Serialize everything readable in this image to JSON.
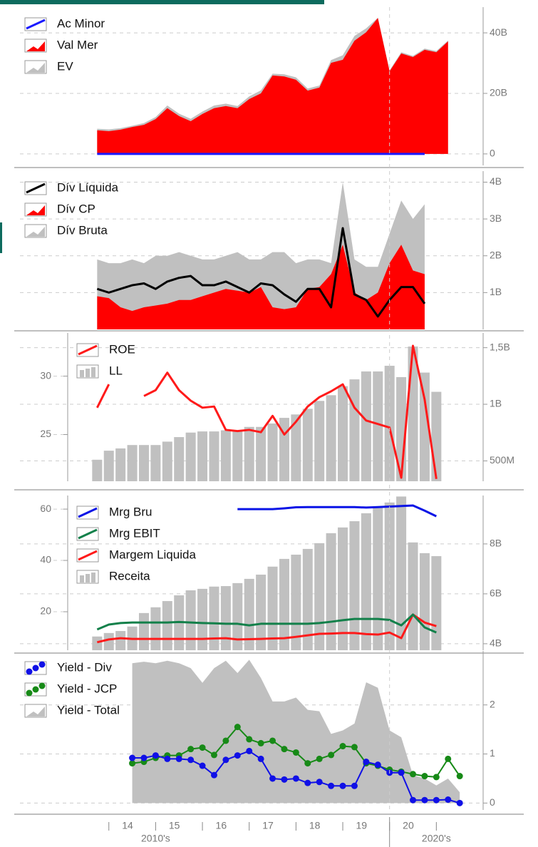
{
  "chart_data": [
    {
      "type": "combo",
      "xlim": [
        2012.1,
        2022.0
      ],
      "grid": true,
      "x": [
        2013.75,
        2014,
        2014.25,
        2014.5,
        2014.75,
        2015,
        2015.25,
        2015.5,
        2015.75,
        2016,
        2016.25,
        2016.5,
        2016.75,
        2017,
        2017.25,
        2017.5,
        2017.75,
        2018,
        2018.25,
        2018.5,
        2018.75,
        2019,
        2019.25,
        2019.5,
        2019.75,
        2020,
        2020.25,
        2020.5,
        2020.75,
        2021,
        2021.25
      ],
      "y2lim": [
        -3800000000.0,
        48500000000.0
      ],
      "y2ticks": [
        0,
        {
          "value": 20000000000.0,
          "label": "20B"
        },
        {
          "value": 40000000000.0,
          "label": "40B"
        }
      ],
      "series": [
        {
          "name": "Ac Minor",
          "color": "#1a1aff",
          "kind": "line",
          "axis": "y2",
          "values": [
            0,
            0,
            0,
            0,
            0,
            0,
            0,
            0,
            0,
            0,
            0,
            0,
            0,
            0,
            0,
            0,
            0,
            0,
            0,
            0,
            0,
            0,
            0,
            0,
            0,
            0,
            0,
            0,
            0,
            null,
            null
          ]
        },
        {
          "name": "Val Mer",
          "color": "#ff0000",
          "kind": "area",
          "axis": "y2",
          "values": [
            7800000000.0,
            7500000000.0,
            8000000000.0,
            8900000000.0,
            9600000000.0,
            11500000000.0,
            15100000000.0,
            12500000000.0,
            10800000000.0,
            13200000000.0,
            15100000000.0,
            15800000000.0,
            15100000000.0,
            18100000000.0,
            20000000000.0,
            25900000000.0,
            25600000000.0,
            24500000000.0,
            20900000000.0,
            21900000000.0,
            30100000000.0,
            31100000000.0,
            37400000000.0,
            40200000000.0,
            44900000000.0,
            27300000000.0,
            33200000000.0,
            32000000000.0,
            34400000000.0,
            33600000000.0,
            37200000000.0
          ]
        },
        {
          "name": "EV",
          "color": "#c0c0c0",
          "kind": "area",
          "axis": "y2",
          "values": [
            8300000000.0,
            8100000000.0,
            8500000000.0,
            9300000000.0,
            10200000000.0,
            12200000000.0,
            16000000000.0,
            13300000000.0,
            11600000000.0,
            14000000000.0,
            16000000000.0,
            16600000000.0,
            15800000000.0,
            19000000000.0,
            21000000000.0,
            26500000000.0,
            26300000000.0,
            25300000000.0,
            21600000000.0,
            22600000000.0,
            31000000000.0,
            32600000000.0,
            39000000000.0,
            41500000000.0,
            45000000000.0,
            27600000000.0,
            33600000000.0,
            32400000000.0,
            34800000000.0,
            34000000000.0,
            37500000000.0
          ]
        }
      ]
    },
    {
      "type": "combo",
      "xlim": [
        2012.1,
        2022.0
      ],
      "grid": true,
      "x": [
        2013.75,
        2014,
        2014.25,
        2014.5,
        2014.75,
        2015,
        2015.25,
        2015.5,
        2015.75,
        2016,
        2016.25,
        2016.5,
        2016.75,
        2017,
        2017.25,
        2017.5,
        2017.75,
        2018,
        2018.25,
        2018.5,
        2018.75,
        2019,
        2019.25,
        2019.5,
        2019.75,
        2020,
        2020.25,
        2020.5,
        2020.75
      ],
      "y2lim": [
        0,
        4300000000.0
      ],
      "y2ticks": [
        {
          "value": 1000000000.0,
          "label": "1B"
        },
        {
          "value": 2000000000.0,
          "label": "2B"
        },
        {
          "value": 3000000000.0,
          "label": "3B"
        },
        {
          "value": 4000000000.0,
          "label": "4B"
        }
      ],
      "series": [
        {
          "name": "Dív Líquida",
          "color": "#000000",
          "kind": "line",
          "axis": "y2",
          "values": [
            1100000000.0,
            1000000000.0,
            1100000000.0,
            1200000000.0,
            1250000000.0,
            1100000000.0,
            1300000000.0,
            1400000000.0,
            1450000000.0,
            1200000000.0,
            1200000000.0,
            1300000000.0,
            1150000000.0,
            1000000000.0,
            1250000000.0,
            1200000000.0,
            950000000.0,
            750000000.0,
            1100000000.0,
            1100000000.0,
            600000000.0,
            2750000000.0,
            950000000.0,
            800000000.0,
            350000000.0,
            800000000.0,
            1150000000.0,
            1150000000.0,
            700000000.0
          ]
        },
        {
          "name": "Dív CP",
          "color": "#ff0000",
          "kind": "area",
          "axis": "y2",
          "values": [
            900000000.0,
            850000000.0,
            600000000.0,
            500000000.0,
            600000000.0,
            650000000.0,
            700000000.0,
            800000000.0,
            800000000.0,
            900000000.0,
            1000000000.0,
            1100000000.0,
            1050000000.0,
            1000000000.0,
            1150000000.0,
            600000000.0,
            550000000.0,
            600000000.0,
            1100000000.0,
            1150000000.0,
            1500000000.0,
            2300000000.0,
            1000000000.0,
            800000000.0,
            1000000000.0,
            1800000000.0,
            2300000000.0,
            1600000000.0,
            1500000000.0
          ]
        },
        {
          "name": "Dív Bruta",
          "color": "#c0c0c0",
          "kind": "area",
          "axis": "y2",
          "values": [
            1900000000.0,
            1800000000.0,
            1800000000.0,
            1900000000.0,
            1800000000.0,
            2000000000.0,
            2000000000.0,
            2100000000.0,
            2000000000.0,
            1900000000.0,
            1900000000.0,
            2000000000.0,
            2100000000.0,
            1900000000.0,
            1900000000.0,
            2100000000.0,
            2100000000.0,
            1800000000.0,
            1900000000.0,
            1900000000.0,
            1800000000.0,
            4000000000.0,
            1900000000.0,
            1700000000.0,
            1700000000.0,
            2600000000.0,
            3500000000.0,
            3000000000.0,
            3400000000.0
          ]
        }
      ]
    },
    {
      "type": "combo",
      "xlim": [
        2012.1,
        2022.0
      ],
      "grid": true,
      "x": [
        2013.75,
        2014,
        2014.25,
        2014.5,
        2014.75,
        2015,
        2015.25,
        2015.5,
        2015.75,
        2016,
        2016.25,
        2016.5,
        2016.75,
        2017,
        2017.25,
        2017.5,
        2017.75,
        2018,
        2018.25,
        2018.5,
        2018.75,
        2019,
        2019.25,
        2019.5,
        2019.75,
        2020,
        2020.25,
        2020.5,
        2020.75,
        2021
      ],
      "ylim": [
        21.0,
        33.7
      ],
      "yticks": [
        25,
        30
      ],
      "y2lim": [
        320000000.0,
        1630000000.0
      ],
      "y2ticks": [
        {
          "value": 500000000.0,
          "label": "500M"
        },
        {
          "value": 1000000000.0,
          "label": "1B"
        },
        {
          "value": 1500000000.0,
          "label": "1,5B"
        }
      ],
      "series": [
        {
          "name": "ROE",
          "color": "#ff1a1a",
          "kind": "line",
          "values": [
            27.3,
            29.3,
            null,
            null,
            28.3,
            28.8,
            30.3,
            28.8,
            27.9,
            27.3,
            27.4,
            25.4,
            25.3,
            25.4,
            25.2,
            26.6,
            25.0,
            26.1,
            27.4,
            28.2,
            28.7,
            29.3,
            27.3,
            26.2,
            25.9,
            25.6,
            21.3,
            32.6,
            28.0,
            21.2
          ]
        },
        {
          "name": "LL",
          "color": "#c0c0c0",
          "kind": "bar",
          "axis": "y2",
          "values": [
            510000000.0,
            590000000.0,
            610000000.0,
            640000000.0,
            640000000.0,
            640000000.0,
            670000000.0,
            710000000.0,
            750000000.0,
            760000000.0,
            760000000.0,
            770000000.0,
            760000000.0,
            800000000.0,
            800000000.0,
            830000000.0,
            880000000.0,
            910000000.0,
            960000000.0,
            1030000000.0,
            1080000000.0,
            1160000000.0,
            1220000000.0,
            1290000000.0,
            1290000000.0,
            1340000000.0,
            1240000000.0,
            1510000000.0,
            1280000000.0,
            1110000000.0
          ]
        }
      ]
    },
    {
      "type": "combo",
      "xlim": [
        2012.1,
        2022.0
      ],
      "grid": true,
      "x": [
        2013.75,
        2014,
        2014.25,
        2014.5,
        2014.75,
        2015,
        2015.25,
        2015.5,
        2015.75,
        2016,
        2016.25,
        2016.5,
        2016.75,
        2017,
        2017.25,
        2017.5,
        2017.75,
        2018,
        2018.25,
        2018.5,
        2018.75,
        2019,
        2019.25,
        2019.5,
        2019.75,
        2020,
        2020.25,
        2020.5,
        2020.75,
        2021
      ],
      "ylim": [
        5,
        65.3
      ],
      "yticks": [
        20,
        40,
        60
      ],
      "y2lim": [
        3740000000.0,
        9940000000.0
      ],
      "y2ticks": [
        {
          "value": 4000000000.0,
          "label": "4B"
        },
        {
          "value": 6000000000.0,
          "label": "6B"
        },
        {
          "value": 8000000000.0,
          "label": "8B"
        }
      ],
      "series": [
        {
          "name": "Mrg Bru",
          "color": "#0a14e6",
          "kind": "line",
          "values": [
            null,
            null,
            null,
            null,
            null,
            null,
            null,
            null,
            null,
            null,
            null,
            null,
            60.0,
            60.0,
            60.0,
            60.0,
            60.3,
            60.7,
            60.8,
            60.8,
            60.8,
            60.8,
            60.8,
            60.6,
            60.8,
            61.0,
            61.2,
            61.4,
            59.4,
            57.2
          ]
        },
        {
          "name": "Mrg EBIT",
          "color": "#12804a",
          "kind": "line",
          "values": [
            13.1,
            15.0,
            15.6,
            15.8,
            15.8,
            15.8,
            15.8,
            16.0,
            15.8,
            15.6,
            15.5,
            15.3,
            15.3,
            14.7,
            15.3,
            15.3,
            15.3,
            15.3,
            15.3,
            15.6,
            16.1,
            16.7,
            17.2,
            17.2,
            17.2,
            16.8,
            14.7,
            18.9,
            13.9,
            11.9
          ]
        },
        {
          "name": "Margem Liquida",
          "color": "#ff1a1a",
          "kind": "line",
          "values": [
            8.1,
            9.2,
            9.7,
            9.4,
            9.4,
            9.4,
            9.4,
            9.4,
            9.4,
            9.4,
            9.6,
            9.7,
            9.2,
            9.3,
            9.4,
            9.6,
            9.7,
            10.2,
            10.8,
            11.4,
            11.5,
            11.7,
            11.7,
            11.3,
            11.1,
            11.9,
            9.7,
            18.9,
            15.8,
            14.4
          ]
        },
        {
          "name": "Receita",
          "color": "#c0c0c0",
          "kind": "bar",
          "axis": "y2",
          "values": [
            4290000000.0,
            4430000000.0,
            4510000000.0,
            4690000000.0,
            5230000000.0,
            5460000000.0,
            5710000000.0,
            5940000000.0,
            6140000000.0,
            6200000000.0,
            6290000000.0,
            6310000000.0,
            6430000000.0,
            6600000000.0,
            6770000000.0,
            7090000000.0,
            7400000000.0,
            7570000000.0,
            7800000000.0,
            8030000000.0,
            8430000000.0,
            8660000000.0,
            8910000000.0,
            9230000000.0,
            9460000000.0,
            9660000000.0,
            9900000000.0,
            8060000000.0,
            7630000000.0,
            7510000000.0
          ]
        }
      ]
    },
    {
      "type": "combo",
      "xlim": [
        2012.1,
        2022.0
      ],
      "grid": true,
      "x": [
        2014.5,
        2014.75,
        2015,
        2015.25,
        2015.5,
        2015.75,
        2016,
        2016.25,
        2016.5,
        2016.75,
        2017,
        2017.25,
        2017.5,
        2017.75,
        2018,
        2018.25,
        2018.5,
        2018.75,
        2019,
        2019.25,
        2019.5,
        2019.75,
        2020,
        2020.25,
        2020.5,
        2020.75,
        2021,
        2021.25,
        2021.5
      ],
      "y2lim": [
        -0.14,
        3.1
      ],
      "y2ticks": [
        0,
        1,
        2
      ],
      "xticks": [
        {
          "value": 2014,
          "label": "14"
        },
        {
          "value": 2015,
          "label": "15"
        },
        {
          "value": 2016,
          "label": "16"
        },
        {
          "value": 2017,
          "label": "17"
        },
        {
          "value": 2018,
          "label": "18"
        },
        {
          "value": 2019,
          "label": "19"
        },
        {
          "value": 2020,
          "label": "20"
        },
        {
          "value": 2021,
          "label": null
        }
      ],
      "decades": [
        {
          "value": 2010,
          "label": "2010's"
        },
        {
          "value": 2020,
          "label": "2020's"
        }
      ],
      "series": [
        {
          "name": "Yield - Div",
          "color": "#1010e6",
          "kind": "dots",
          "axis": "y2",
          "values": [
            0.92,
            0.92,
            0.97,
            0.9,
            0.9,
            0.88,
            0.76,
            0.57,
            0.88,
            0.97,
            1.06,
            0.9,
            0.5,
            0.48,
            0.5,
            0.41,
            0.43,
            0.35,
            0.35,
            0.35,
            0.84,
            0.78,
            0.62,
            0.62,
            0.06,
            0.06,
            0.06,
            0.07,
            0.0
          ]
        },
        {
          "name": "Yield - JCP",
          "color": "#178a17",
          "kind": "dots",
          "axis": "y2",
          "values": [
            0.81,
            0.84,
            0.92,
            0.97,
            0.97,
            1.1,
            1.13,
            0.98,
            1.27,
            1.55,
            1.3,
            1.22,
            1.27,
            1.1,
            1.03,
            0.81,
            0.9,
            0.98,
            1.16,
            1.14,
            0.81,
            0.76,
            0.68,
            0.64,
            0.59,
            0.55,
            0.53,
            0.9,
            0.55
          ]
        },
        {
          "name": "Yield - Total",
          "color": "#c0c0c0",
          "kind": "area",
          "axis": "y2",
          "values": [
            2.85,
            2.88,
            2.85,
            2.9,
            2.85,
            2.75,
            2.45,
            2.75,
            2.9,
            2.65,
            2.92,
            2.55,
            2.07,
            2.07,
            2.15,
            1.9,
            1.87,
            1.41,
            1.48,
            1.62,
            2.46,
            2.35,
            1.48,
            1.34,
            0.57,
            0.5,
            0.36,
            0.5,
            0.22
          ]
        }
      ]
    }
  ]
}
